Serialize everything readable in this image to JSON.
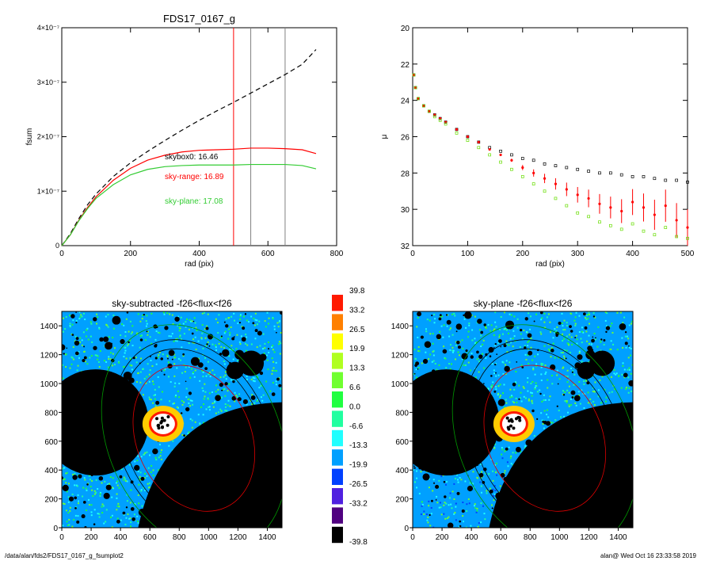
{
  "chart_data": [
    {
      "type": "line",
      "title": "FDS17_0167_g",
      "xlabel": "rad (pix)",
      "ylabel": "fsum",
      "xlim": [
        0,
        800
      ],
      "ylim": [
        0,
        4e-07
      ],
      "xticks": [
        "0",
        "200",
        "400",
        "600",
        "800"
      ],
      "yticks": [
        {
          "v": 0,
          "label": "0"
        },
        {
          "v": 1e-07,
          "label": "1×10⁻⁷"
        },
        {
          "v": 2e-07,
          "label": "2×10⁻⁷"
        },
        {
          "v": 3e-07,
          "label": "3×10⁻⁷"
        },
        {
          "v": 4e-07,
          "label": "4×10⁻⁷"
        }
      ],
      "vlines": [
        {
          "x": 500,
          "color": "#ff0000"
        },
        {
          "x": 550,
          "color": "#808080"
        },
        {
          "x": 650,
          "color": "#808080"
        }
      ],
      "series": [
        {
          "color": "#000000",
          "dash": true,
          "x": [
            0,
            25,
            50,
            75,
            100,
            150,
            200,
            250,
            300,
            350,
            400,
            450,
            500,
            550,
            600,
            650,
            700,
            740
          ],
          "y": [
            0,
            2.2e-08,
            5e-08,
            7.5e-08,
            9.5e-08,
            1.27e-07,
            1.52e-07,
            1.73e-07,
            1.93e-07,
            2.12e-07,
            2.3e-07,
            2.47e-07,
            2.63e-07,
            2.8e-07,
            2.97e-07,
            3.14e-07,
            3.33e-07,
            3.6e-07
          ]
        },
        {
          "color": "#ff0000",
          "dash": false,
          "x": [
            0,
            25,
            50,
            75,
            100,
            150,
            200,
            250,
            300,
            350,
            400,
            450,
            500,
            550,
            600,
            650,
            700,
            740
          ],
          "y": [
            0,
            2e-08,
            4.7e-08,
            7e-08,
            9e-08,
            1.2e-07,
            1.42e-07,
            1.57e-07,
            1.66e-07,
            1.72e-07,
            1.75e-07,
            1.76e-07,
            1.77e-07,
            1.79e-07,
            1.79e-07,
            1.78e-07,
            1.76e-07,
            1.69e-07
          ]
        },
        {
          "color": "#33cc33",
          "dash": false,
          "x": [
            0,
            25,
            50,
            75,
            100,
            150,
            200,
            250,
            300,
            350,
            400,
            450,
            500,
            550,
            600,
            650,
            700,
            740
          ],
          "y": [
            0,
            2e-08,
            4.6e-08,
            6.8e-08,
            8.7e-08,
            1.12e-07,
            1.3e-07,
            1.4e-07,
            1.45e-07,
            1.47e-07,
            1.48e-07,
            1.48e-07,
            1.48e-07,
            1.49e-07,
            1.49e-07,
            1.49e-07,
            1.47e-07,
            1.41e-07
          ]
        }
      ],
      "annotations": [
        {
          "text": "skybox0: 16.46",
          "color": "#000000"
        },
        {
          "text": "sky-range: 16.89",
          "color": "#ff0000"
        },
        {
          "text": "sky-plane: 17.08",
          "color": "#33cc33"
        }
      ]
    },
    {
      "type": "scatter",
      "title": "",
      "xlabel": "rad (pix)",
      "ylabel": "μ",
      "xlim": [
        0,
        500
      ],
      "ylim": [
        32,
        20
      ],
      "xticks": [
        "0",
        "100",
        "200",
        "300",
        "400",
        "500"
      ],
      "yticks": [
        "20",
        "22",
        "24",
        "26",
        "28",
        "30",
        "32"
      ],
      "series": [
        {
          "color": "#000000",
          "marker": "square",
          "x": [
            2,
            5,
            10,
            20,
            30,
            40,
            50,
            60,
            80,
            100,
            120,
            140,
            160,
            180,
            200,
            220,
            240,
            260,
            280,
            300,
            320,
            340,
            360,
            380,
            400,
            420,
            440,
            460,
            480,
            500
          ],
          "y": [
            22.6,
            23.3,
            23.9,
            24.3,
            24.6,
            24.8,
            25.0,
            25.2,
            25.6,
            26.0,
            26.3,
            26.6,
            26.8,
            27.0,
            27.2,
            27.3,
            27.5,
            27.6,
            27.7,
            27.8,
            27.9,
            28.0,
            28.0,
            28.1,
            28.2,
            28.2,
            28.3,
            28.4,
            28.4,
            28.5
          ]
        },
        {
          "color": "#ff0000",
          "marker": "errorbar",
          "x": [
            2,
            5,
            10,
            20,
            30,
            40,
            50,
            60,
            80,
            100,
            120,
            140,
            160,
            180,
            200,
            220,
            240,
            260,
            280,
            300,
            320,
            340,
            360,
            380,
            400,
            420,
            440,
            460,
            480,
            500
          ],
          "y": [
            22.6,
            23.3,
            23.9,
            24.3,
            24.6,
            24.8,
            25.0,
            25.2,
            25.6,
            26.0,
            26.3,
            26.7,
            27.0,
            27.3,
            27.7,
            28.0,
            28.3,
            28.6,
            28.9,
            29.2,
            29.4,
            29.7,
            29.9,
            30.1,
            29.6,
            29.9,
            30.3,
            29.8,
            30.6,
            31.0
          ]
        },
        {
          "color": "#66dd00",
          "marker": "square",
          "x": [
            2,
            5,
            10,
            20,
            30,
            40,
            50,
            60,
            80,
            100,
            120,
            140,
            160,
            180,
            200,
            220,
            240,
            260,
            280,
            300,
            320,
            340,
            360,
            380,
            400,
            420,
            440,
            460,
            480,
            500
          ],
          "y": [
            22.6,
            23.3,
            23.9,
            24.3,
            24.6,
            24.9,
            25.1,
            25.3,
            25.8,
            26.2,
            26.6,
            27.0,
            27.4,
            27.8,
            28.2,
            28.6,
            29.0,
            29.4,
            29.8,
            30.2,
            30.4,
            30.7,
            30.9,
            31.1,
            30.8,
            31.2,
            31.4,
            31.0,
            31.5,
            31.6
          ]
        }
      ]
    },
    {
      "type": "heatmap",
      "title": "sky-subtracted -f26<flux<f26",
      "xlim": [
        0,
        1500
      ],
      "ylim": [
        0,
        1500
      ],
      "xticks": [
        "0",
        "200",
        "400",
        "600",
        "800",
        "1000",
        "1200",
        "1400"
      ],
      "yticks": [
        "0",
        "200",
        "400",
        "600",
        "800",
        "1000",
        "1200",
        "1400"
      ],
      "background_level": 8
    },
    {
      "type": "heatmap",
      "title": "sky-plane -f26<flux<f26",
      "xlim": [
        0,
        1500
      ],
      "ylim": [
        0,
        1500
      ],
      "xticks": [
        "0",
        "200",
        "400",
        "600",
        "800",
        "1000",
        "1200",
        "1400"
      ],
      "yticks": [
        "0",
        "200",
        "400",
        "600",
        "800",
        "1000",
        "1200",
        "1400"
      ],
      "background_level": 8,
      "gradient_low_left": true
    }
  ],
  "colorbar": {
    "labels": [
      "39.8",
      "33.2",
      "26.5",
      "19.9",
      "13.3",
      "6.6",
      "0.0",
      "-6.6",
      "-13.3",
      "-19.9",
      "-26.5",
      "-33.2",
      "-39.8"
    ],
    "colors": [
      "#ff1a00",
      "#ff8000",
      "#ffff00",
      "#b0ff20",
      "#70ff30",
      "#20ff40",
      "#20ffa0",
      "#20ffff",
      "#00a0ff",
      "#0040ff",
      "#5020e0",
      "#500080",
      "#000000"
    ]
  },
  "footer": {
    "left": "/data/alan/fds2/FDS17_0167_g_fsumplot2",
    "right": "alan@  Wed Oct 16 23:33:58 2019"
  }
}
